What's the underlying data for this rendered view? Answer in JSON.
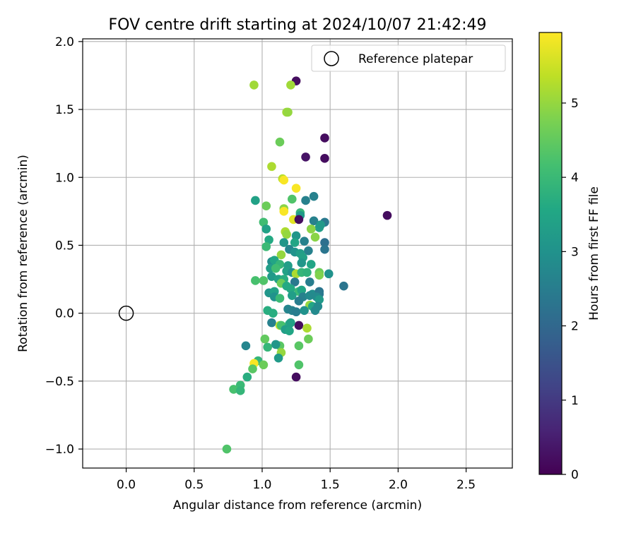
{
  "chart_data": {
    "type": "scatter",
    "title": "FOV centre drift starting at 2024/10/07 21:42:49",
    "xlabel": "Angular distance from reference (arcmin)",
    "ylabel": "Rotation from reference (arcmin)",
    "xlim": [
      -0.32,
      2.84
    ],
    "ylim": [
      -1.14,
      2.02
    ],
    "xticks": [
      0.0,
      0.5,
      1.0,
      1.5,
      2.0,
      2.5
    ],
    "yticks": [
      -1.0,
      -0.5,
      0.0,
      0.5,
      1.0,
      1.5,
      2.0
    ],
    "xtick_labels": [
      "0.0",
      "0.5",
      "1.0",
      "1.5",
      "2.0",
      "2.5"
    ],
    "ytick_labels": [
      "−1.0",
      "−0.5",
      "0.0",
      "0.5",
      "1.0",
      "1.5",
      "2.0"
    ],
    "grid": true,
    "legend": {
      "placement": "top-right",
      "entries": [
        "Reference platepar"
      ]
    },
    "reference": {
      "x": 0.0,
      "y": 0.0,
      "marker": "open-circle",
      "label": "Reference platepar"
    },
    "colorbar": {
      "label": "Hours from first FF file",
      "cmap": "viridis",
      "range": [
        0,
        5.95
      ],
      "ticks": [
        0,
        1,
        2,
        3,
        4,
        5
      ],
      "tick_labels": [
        "0",
        "1",
        "2",
        "3",
        "4",
        "5"
      ]
    },
    "points": [
      [
        1.25,
        1.71,
        0.2
      ],
      [
        0.94,
        1.68,
        5.1
      ],
      [
        1.21,
        1.68,
        5.1
      ],
      [
        1.46,
        1.29,
        0.2
      ],
      [
        1.18,
        1.48,
        5.1
      ],
      [
        1.19,
        1.48,
        5.0
      ],
      [
        1.13,
        1.26,
        4.6
      ],
      [
        1.32,
        1.15,
        0.3
      ],
      [
        1.46,
        1.14,
        0.2
      ],
      [
        1.07,
        1.08,
        5.2
      ],
      [
        1.15,
        0.99,
        5.3
      ],
      [
        1.16,
        0.98,
        5.9
      ],
      [
        1.25,
        0.92,
        5.9
      ],
      [
        1.92,
        0.72,
        0.2
      ],
      [
        0.95,
        0.83,
        3.4
      ],
      [
        1.03,
        0.79,
        4.6
      ],
      [
        1.22,
        0.84,
        4.3
      ],
      [
        1.32,
        0.83,
        2.6
      ],
      [
        1.38,
        0.86,
        2.6
      ],
      [
        1.16,
        0.77,
        4.9
      ],
      [
        1.16,
        0.75,
        5.9
      ],
      [
        1.28,
        0.74,
        3.9
      ],
      [
        1.28,
        0.72,
        3.2
      ],
      [
        1.23,
        0.69,
        5.7
      ],
      [
        1.27,
        0.69,
        0.2
      ],
      [
        1.38,
        0.68,
        2.6
      ],
      [
        1.46,
        0.67,
        2.4
      ],
      [
        1.01,
        0.67,
        4.1
      ],
      [
        1.03,
        0.62,
        3.4
      ],
      [
        1.17,
        0.6,
        5.2
      ],
      [
        1.18,
        0.58,
        5.0
      ],
      [
        1.25,
        0.57,
        3.1
      ],
      [
        1.42,
        0.63,
        3.3
      ],
      [
        1.36,
        0.62,
        4.9
      ],
      [
        1.43,
        0.65,
        3.2
      ],
      [
        1.39,
        0.56,
        4.9
      ],
      [
        1.05,
        0.54,
        3.6
      ],
      [
        1.03,
        0.49,
        4.0
      ],
      [
        1.16,
        0.52,
        3.1
      ],
      [
        1.24,
        0.52,
        3.5
      ],
      [
        1.31,
        0.53,
        2.6
      ],
      [
        1.46,
        0.52,
        2.2
      ],
      [
        1.46,
        0.47,
        2.3
      ],
      [
        1.2,
        0.47,
        2.7
      ],
      [
        1.24,
        0.45,
        3.0
      ],
      [
        1.34,
        0.46,
        2.6
      ],
      [
        1.14,
        0.43,
        5.0
      ],
      [
        1.28,
        0.44,
        3.3
      ],
      [
        1.3,
        0.41,
        3.4
      ],
      [
        1.07,
        0.38,
        2.9
      ],
      [
        1.09,
        0.39,
        3.5
      ],
      [
        1.13,
        0.36,
        3.9
      ],
      [
        1.19,
        0.35,
        3.3
      ],
      [
        1.29,
        0.37,
        3.1
      ],
      [
        1.36,
        0.36,
        3.5
      ],
      [
        1.06,
        0.33,
        3.3
      ],
      [
        1.1,
        0.33,
        4.1
      ],
      [
        1.18,
        0.31,
        3.4
      ],
      [
        1.22,
        0.3,
        3.0
      ],
      [
        1.25,
        0.29,
        5.2
      ],
      [
        1.29,
        0.3,
        3.9
      ],
      [
        1.33,
        0.3,
        3.8
      ],
      [
        1.42,
        0.3,
        4.6
      ],
      [
        1.42,
        0.28,
        4.8
      ],
      [
        1.49,
        0.29,
        3.0
      ],
      [
        1.07,
        0.27,
        3.2
      ],
      [
        1.12,
        0.25,
        3.4
      ],
      [
        1.16,
        0.25,
        3.7
      ],
      [
        0.95,
        0.24,
        4.2
      ],
      [
        1.01,
        0.24,
        4.3
      ],
      [
        1.14,
        0.22,
        4.6
      ],
      [
        1.18,
        0.2,
        3.6
      ],
      [
        1.24,
        0.23,
        2.4
      ],
      [
        1.35,
        0.23,
        2.5
      ],
      [
        1.21,
        0.18,
        3.6
      ],
      [
        1.27,
        0.16,
        4.0
      ],
      [
        1.29,
        0.17,
        3.5
      ],
      [
        1.37,
        0.14,
        2.9
      ],
      [
        1.42,
        0.16,
        2.3
      ],
      [
        1.42,
        0.14,
        2.4
      ],
      [
        1.6,
        0.2,
        2.3
      ],
      [
        1.05,
        0.15,
        3.1
      ],
      [
        1.09,
        0.16,
        3.4
      ],
      [
        1.09,
        0.12,
        3.0
      ],
      [
        1.13,
        0.11,
        4.0
      ],
      [
        1.22,
        0.13,
        3.3
      ],
      [
        1.3,
        0.12,
        2.6
      ],
      [
        1.35,
        0.13,
        2.8
      ],
      [
        1.4,
        0.12,
        2.8
      ],
      [
        1.42,
        0.1,
        3.2
      ],
      [
        1.27,
        0.09,
        2.5
      ],
      [
        1.35,
        0.06,
        5.0
      ],
      [
        1.37,
        0.05,
        3.5
      ],
      [
        1.41,
        0.05,
        2.8
      ],
      [
        1.04,
        0.02,
        3.7
      ],
      [
        1.08,
        0.0,
        3.7
      ],
      [
        1.19,
        0.03,
        2.7
      ],
      [
        1.22,
        0.02,
        2.6
      ],
      [
        1.25,
        0.01,
        2.5
      ],
      [
        1.39,
        0.02,
        2.8
      ],
      [
        1.31,
        0.02,
        3.0
      ],
      [
        1.07,
        -0.07,
        2.6
      ],
      [
        1.13,
        -0.09,
        5.4
      ],
      [
        1.14,
        -0.09,
        4.2
      ],
      [
        1.2,
        -0.08,
        3.7
      ],
      [
        1.27,
        -0.09,
        0.2
      ],
      [
        1.33,
        -0.11,
        5.2
      ],
      [
        1.17,
        -0.12,
        3.3
      ],
      [
        1.2,
        -0.13,
        3.5
      ],
      [
        1.21,
        -0.07,
        3.4
      ],
      [
        1.02,
        -0.19,
        4.5
      ],
      [
        1.13,
        -0.24,
        4.4
      ],
      [
        1.1,
        -0.23,
        3.1
      ],
      [
        1.04,
        -0.25,
        3.9
      ],
      [
        0.88,
        -0.24,
        2.7
      ],
      [
        1.27,
        -0.24,
        4.4
      ],
      [
        1.34,
        -0.19,
        4.6
      ],
      [
        1.14,
        -0.29,
        5.0
      ],
      [
        1.12,
        -0.33,
        3.2
      ],
      [
        0.97,
        -0.35,
        3.9
      ],
      [
        1.01,
        -0.38,
        4.6
      ],
      [
        0.94,
        -0.37,
        5.9
      ],
      [
        0.93,
        -0.41,
        4.4
      ],
      [
        1.27,
        -0.38,
        4.3
      ],
      [
        0.89,
        -0.47,
        3.7
      ],
      [
        1.25,
        -0.47,
        0.2
      ],
      [
        0.84,
        -0.53,
        4.0
      ],
      [
        0.79,
        -0.56,
        4.2
      ],
      [
        0.84,
        -0.57,
        3.9
      ],
      [
        0.74,
        -1.0,
        4.3
      ]
    ]
  }
}
